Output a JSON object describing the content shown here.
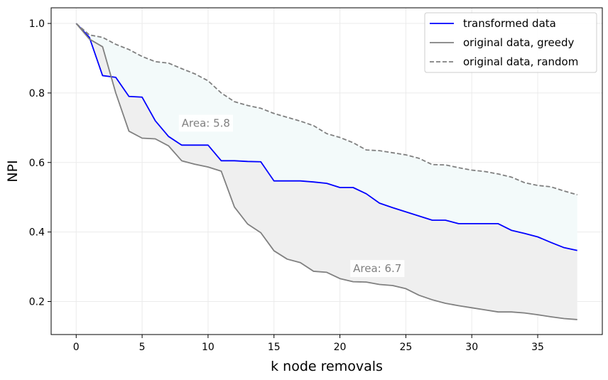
{
  "chart_data": {
    "type": "line",
    "title": "",
    "xlabel": "k node removals",
    "ylabel": "NPI",
    "xlim": [
      -1.9,
      39.9
    ],
    "ylim": [
      0.105,
      1.045
    ],
    "xticks": [
      0,
      5,
      10,
      15,
      20,
      25,
      30,
      35
    ],
    "yticks": [
      0.2,
      0.4,
      0.6,
      0.8,
      1.0
    ],
    "xtick_labels": [
      "0",
      "5",
      "10",
      "15",
      "20",
      "25",
      "30",
      "35"
    ],
    "ytick_labels": [
      "0.2",
      "0.4",
      "0.6",
      "0.8",
      "1.0"
    ],
    "grid": true,
    "legend_position": "upper right",
    "x": [
      0,
      1,
      2,
      3,
      4,
      5,
      6,
      7,
      8,
      9,
      10,
      11,
      12,
      13,
      14,
      15,
      16,
      17,
      18,
      19,
      20,
      21,
      22,
      23,
      24,
      25,
      26,
      27,
      28,
      29,
      30,
      31,
      32,
      33,
      34,
      35,
      36,
      37,
      38
    ],
    "series": [
      {
        "name": "transformed data",
        "color": "#0000ff",
        "style": "solid",
        "values": [
          1.0,
          0.96,
          0.85,
          0.845,
          0.79,
          0.788,
          0.72,
          0.675,
          0.65,
          0.65,
          0.65,
          0.605,
          0.605,
          0.603,
          0.602,
          0.547,
          0.547,
          0.547,
          0.544,
          0.54,
          0.528,
          0.528,
          0.51,
          0.483,
          0.47,
          0.458,
          0.446,
          0.434,
          0.434,
          0.424,
          0.424,
          0.424,
          0.424,
          0.405,
          0.396,
          0.386,
          0.37,
          0.355,
          0.347
        ]
      },
      {
        "name": "original data, greedy",
        "color": "#808080",
        "style": "solid",
        "values": [
          1.0,
          0.955,
          0.933,
          0.8,
          0.69,
          0.67,
          0.668,
          0.648,
          0.605,
          0.595,
          0.587,
          0.575,
          0.472,
          0.423,
          0.398,
          0.346,
          0.322,
          0.312,
          0.287,
          0.284,
          0.266,
          0.257,
          0.256,
          0.249,
          0.246,
          0.237,
          0.218,
          0.205,
          0.195,
          0.188,
          0.182,
          0.176,
          0.17,
          0.17,
          0.167,
          0.162,
          0.156,
          0.151,
          0.148
        ]
      },
      {
        "name": "original data, random",
        "color": "#808080",
        "style": "dashed",
        "values": [
          1.0,
          0.967,
          0.96,
          0.94,
          0.925,
          0.905,
          0.89,
          0.886,
          0.87,
          0.855,
          0.835,
          0.8,
          0.775,
          0.764,
          0.756,
          0.741,
          0.73,
          0.719,
          0.706,
          0.683,
          0.672,
          0.657,
          0.636,
          0.634,
          0.628,
          0.622,
          0.612,
          0.594,
          0.593,
          0.585,
          0.578,
          0.574,
          0.567,
          0.558,
          0.542,
          0.534,
          0.53,
          0.518,
          0.507
        ]
      }
    ],
    "fills": [
      {
        "between": [
          "transformed data",
          "original data, random"
        ],
        "color": "#f3fafa"
      },
      {
        "between": [
          "original data, greedy",
          "transformed data"
        ],
        "color": "#efefef"
      }
    ],
    "annotations": [
      {
        "text": "Area: 5.8",
        "x": 8,
        "y": 0.713
      },
      {
        "text": "Area: 6.7",
        "x": 21,
        "y": 0.295
      }
    ]
  }
}
